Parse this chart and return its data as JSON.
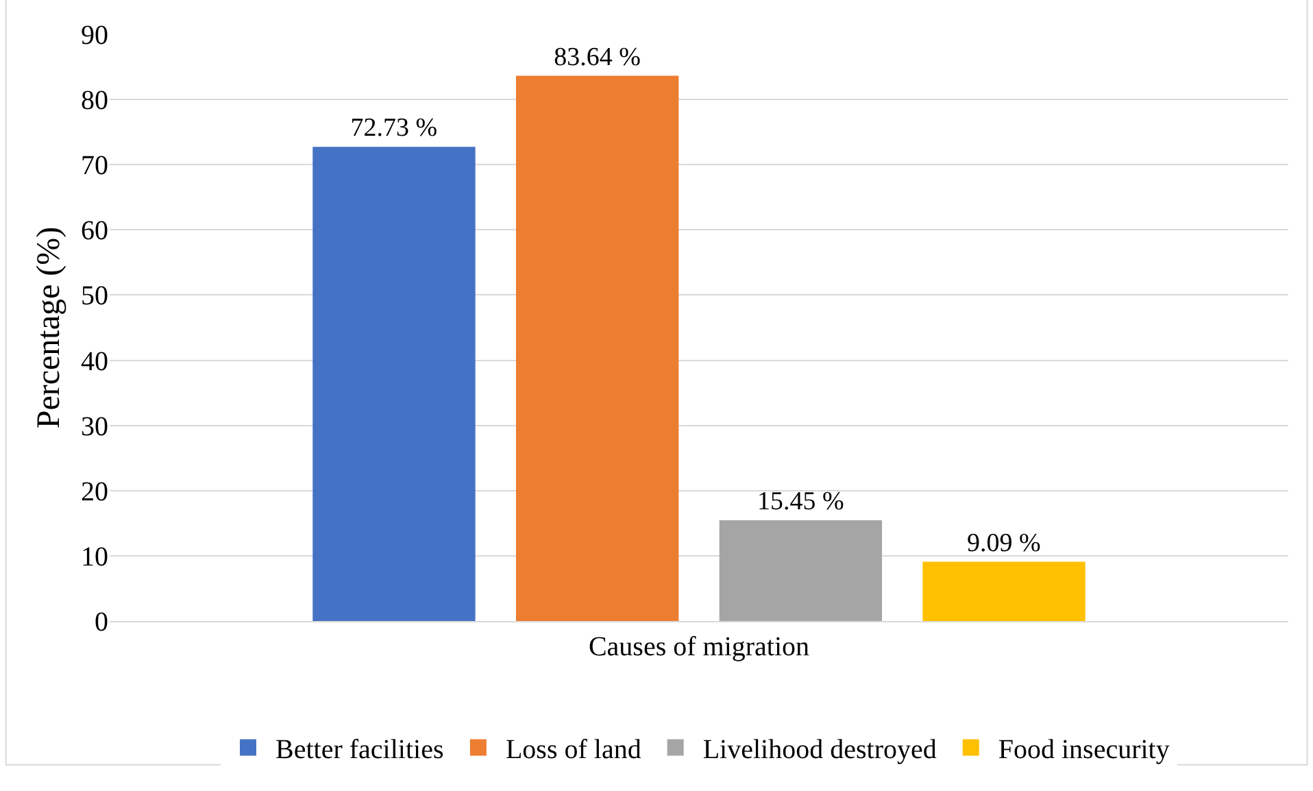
{
  "chart_data": {
    "type": "bar",
    "xlabel": null,
    "ylabel": "Percentage (%)",
    "categories": [
      "Causes of migration"
    ],
    "series": [
      {
        "name": "Better facilities",
        "color": "#4472c4",
        "values": [
          72.73
        ],
        "value_labels": [
          "72.73 %"
        ]
      },
      {
        "name": "Loss of land",
        "color": "#ed7d31",
        "values": [
          83.64
        ],
        "value_labels": [
          "83.64 %"
        ]
      },
      {
        "name": "Livelihood destroyed",
        "color": "#a5a5a5",
        "values": [
          15.45
        ],
        "value_labels": [
          "15.45 %"
        ]
      },
      {
        "name": "Food insecurity",
        "color": "#ffc000",
        "values": [
          9.09
        ],
        "value_labels": [
          "9.09 %"
        ]
      }
    ],
    "ylim": [
      0,
      90
    ],
    "yticks": [
      0,
      10,
      20,
      30,
      40,
      50,
      60,
      70,
      80,
      90
    ],
    "grid": "y",
    "legend": "bottom"
  }
}
